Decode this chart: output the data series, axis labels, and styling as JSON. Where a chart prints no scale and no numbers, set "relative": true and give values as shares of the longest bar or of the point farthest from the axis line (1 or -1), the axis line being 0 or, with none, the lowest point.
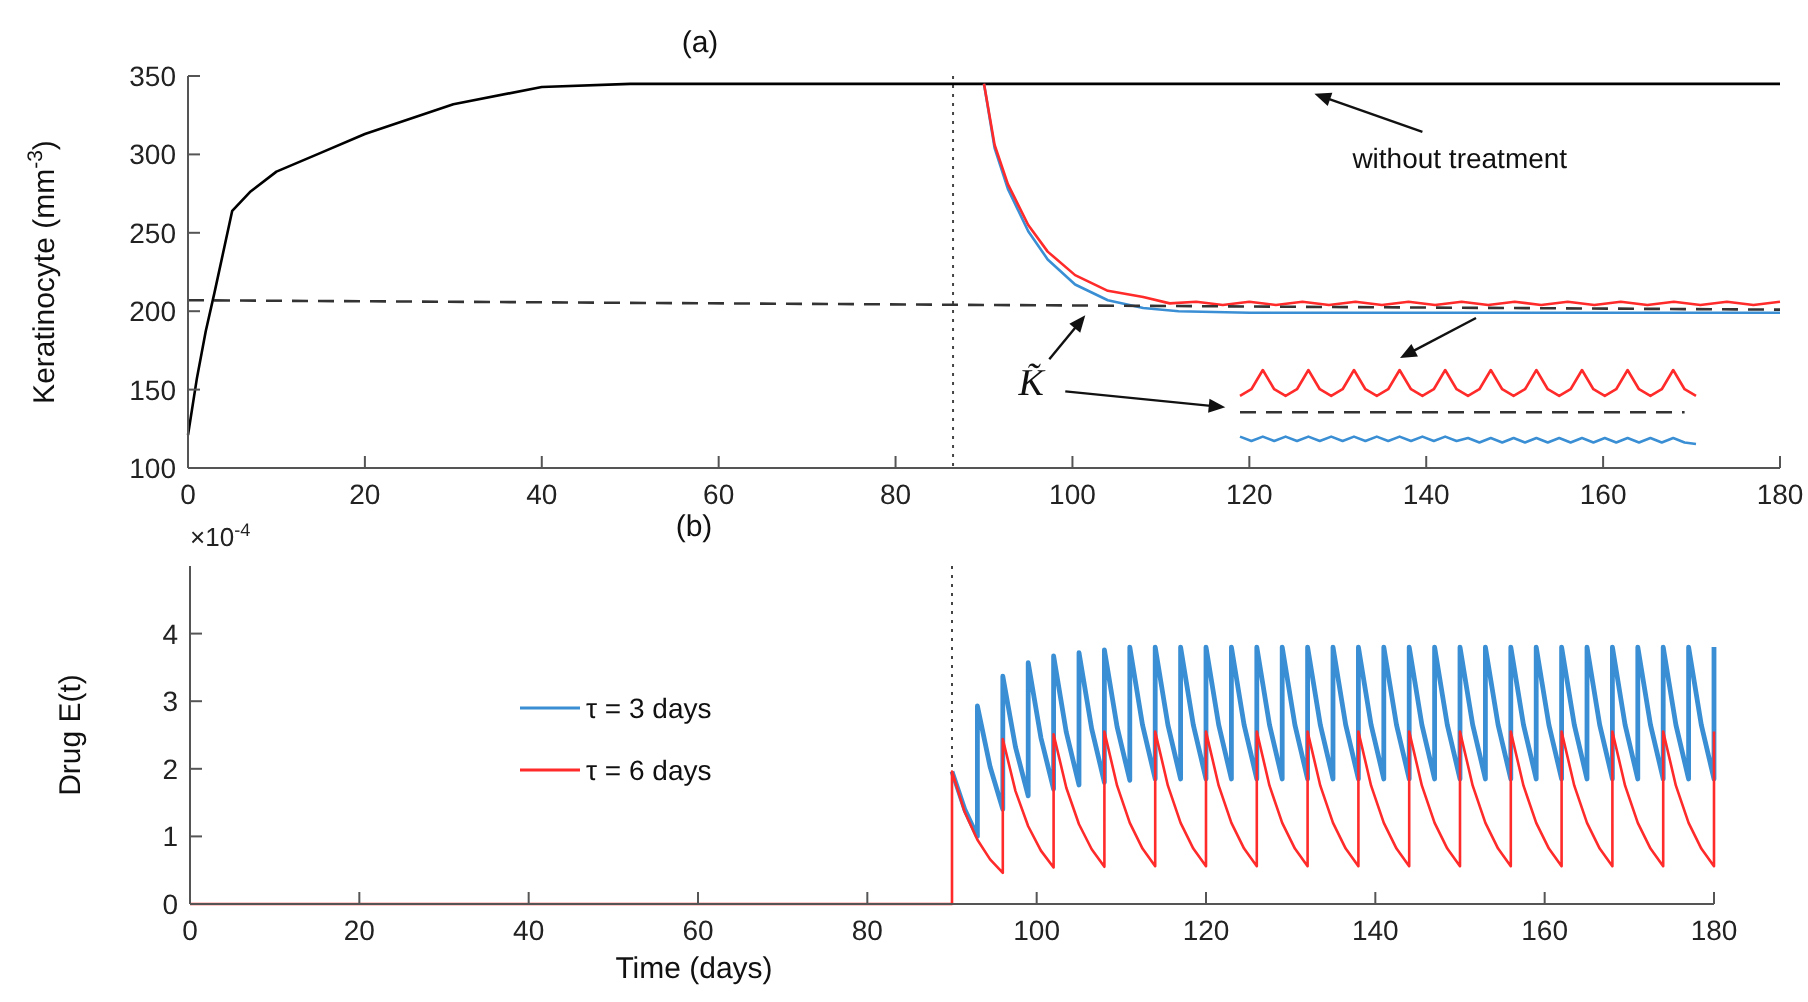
{
  "chart_data": [
    {
      "type": "line",
      "title": "(a)",
      "ylabel": "Keratinocyte (mm$^{-3}$)",
      "xlim": [
        0,
        180
      ],
      "xticks": [
        0,
        20,
        40,
        60,
        80,
        100,
        120,
        140,
        160,
        180
      ],
      "ylim": [
        100,
        350
      ],
      "yticks": [
        100,
        150,
        200,
        250,
        300,
        350
      ],
      "legend": false,
      "series": [
        {
          "color": "#000000",
          "x": [
            0,
            1,
            2,
            3,
            5,
            7,
            10,
            15,
            20,
            30,
            40,
            50,
            60,
            90,
            180
          ],
          "values": [
            121,
            157,
            187,
            212,
            264,
            276,
            289,
            301,
            313,
            332,
            343,
            345,
            345,
            345,
            345
          ]
        },
        {
          "color": "#3a8fd4",
          "x": [
            90,
            91.2,
            92.7,
            95,
            97.2,
            100.3,
            104,
            108,
            112,
            120,
            180
          ],
          "values": [
            345,
            304,
            278,
            251,
            233,
            217,
            207,
            202,
            200,
            199,
            199
          ]
        },
        {
          "color": "#ff2a2a",
          "x": [
            90,
            91.2,
            92.7,
            95,
            97.2,
            100.3,
            104,
            108,
            111,
            114,
            117,
            120,
            123,
            126,
            129,
            132,
            135,
            138,
            141,
            144,
            147,
            150,
            153,
            156,
            159,
            162,
            165,
            168,
            171,
            174,
            177,
            180
          ],
          "values": [
            345,
            306,
            281,
            255,
            238,
            223,
            213,
            209,
            205,
            206,
            204,
            206,
            204,
            206,
            204,
            206,
            204,
            206,
            204,
            206,
            204,
            206,
            204,
            206,
            204,
            206,
            204,
            206,
            204,
            206,
            204,
            206
          ]
        },
        {
          "color": "#333333",
          "line_style": "dashed",
          "x": [
            0,
            180
          ],
          "values": [
            207,
            201
          ]
        }
      ],
      "ref_lines": [
        {
          "axis": "x",
          "value": 86.5,
          "color": "#444444",
          "line_style": "dotted"
        }
      ],
      "annotations": [
        {
          "text": "without treatment",
          "x": 126,
          "y": 345
        },
        {
          "text": "K̃",
          "x": 101,
          "y": 205
        }
      ]
    },
    {
      "type": "line",
      "title": "(b)",
      "xlabel": "Time (days)",
      "ylabel": "Drug E(t)",
      "xlim": [
        0,
        180
      ],
      "xticks": [
        0,
        20,
        40,
        60,
        80,
        100,
        120,
        140,
        160,
        180
      ],
      "ylim": [
        0,
        5
      ],
      "yticks": [
        0,
        1,
        2,
        3,
        4
      ],
      "legend": "left",
      "series": [
        {
          "name": "τ = 3 days",
          "color": "#3a8fd4",
          "x": [
            90,
            91.5,
            93,
            93,
            94.5,
            96,
            96,
            97.5,
            99,
            99,
            100.5,
            102,
            102,
            103.5,
            105,
            105,
            106.5,
            108,
            108,
            109.5,
            111,
            111,
            112.5,
            114,
            114,
            115.5,
            117,
            117,
            118.5,
            120,
            120,
            121.5,
            123,
            123,
            124.5,
            126,
            126,
            127.5,
            129,
            129,
            130.5,
            132,
            132,
            133.5,
            135,
            135,
            136.5,
            138,
            138,
            139.5,
            141,
            141,
            142.5,
            144,
            144,
            145.5,
            147,
            147,
            148.5,
            150,
            150,
            151.5,
            153,
            153,
            154.5,
            156,
            156,
            157.5,
            159,
            159,
            160.5,
            162,
            162,
            163.5,
            165,
            165,
            166.5,
            168,
            168,
            169.5,
            171,
            171,
            172.5,
            174,
            174,
            175.5,
            177,
            177,
            178.5,
            180,
            180
          ],
          "values": [
            1.96,
            1.4,
            1.0,
            2.93,
            2.03,
            1.4,
            3.37,
            2.32,
            1.6,
            3.57,
            2.46,
            1.7,
            3.67,
            2.54,
            1.76,
            3.72,
            2.59,
            1.8,
            3.76,
            2.62,
            1.83,
            3.8,
            2.65,
            1.85,
            3.8,
            2.65,
            1.85,
            3.8,
            2.65,
            1.85,
            3.8,
            2.65,
            1.85,
            3.8,
            2.65,
            1.85,
            3.8,
            2.65,
            1.85,
            3.8,
            2.65,
            1.85,
            3.8,
            2.65,
            1.85,
            3.8,
            2.65,
            1.85,
            3.8,
            2.65,
            1.85,
            3.8,
            2.65,
            1.85,
            3.8,
            2.65,
            1.85,
            3.8,
            2.65,
            1.85,
            3.8,
            2.65,
            1.85,
            3.8,
            2.65,
            1.85,
            3.8,
            2.65,
            1.85,
            3.8,
            2.65,
            1.85,
            3.8,
            2.65,
            1.85,
            3.8,
            2.65,
            1.85,
            3.8,
            2.65,
            1.85,
            3.8,
            2.65,
            1.85,
            3.8,
            2.65,
            1.85,
            3.8,
            2.65,
            1.85,
            3.8
          ]
        },
        {
          "name": "τ = 6 days",
          "color": "#ff2a2a",
          "x": [
            0,
            90,
            90,
            91.5,
            93,
            94.5,
            96,
            96,
            97.5,
            99,
            100.5,
            102,
            102,
            103.5,
            105,
            106.5,
            108,
            108,
            109.5,
            111,
            112.5,
            114,
            114,
            115.5,
            117,
            118.5,
            120,
            120,
            121.5,
            123,
            124.5,
            126,
            126,
            127.5,
            129,
            130.5,
            132,
            132,
            133.5,
            135,
            136.5,
            138,
            138,
            139.5,
            141,
            142.5,
            144,
            144,
            145.5,
            147,
            148.5,
            150,
            150,
            151.5,
            153,
            154.5,
            156,
            156,
            157.5,
            159,
            160.5,
            162,
            162,
            163.5,
            165,
            166.5,
            168,
            168,
            169.5,
            171,
            172.5,
            174,
            174,
            175.5,
            177,
            178.5,
            180,
            180
          ],
          "values": [
            0,
            0,
            1.96,
            1.36,
            0.95,
            0.66,
            0.46,
            2.44,
            1.67,
            1.15,
            0.79,
            0.54,
            2.51,
            1.72,
            1.18,
            0.81,
            0.55,
            2.55,
            1.75,
            1.2,
            0.82,
            0.56,
            2.55,
            1.75,
            1.2,
            0.82,
            0.56,
            2.55,
            1.75,
            1.2,
            0.82,
            0.56,
            2.55,
            1.75,
            1.2,
            0.82,
            0.56,
            2.55,
            1.75,
            1.2,
            0.82,
            0.56,
            2.55,
            1.75,
            1.2,
            0.82,
            0.56,
            2.55,
            1.75,
            1.2,
            0.82,
            0.56,
            2.55,
            1.75,
            1.2,
            0.82,
            0.56,
            2.55,
            1.75,
            1.2,
            0.82,
            0.56,
            2.55,
            1.75,
            1.2,
            0.82,
            0.56,
            2.55,
            1.75,
            1.2,
            0.82,
            0.56,
            2.55,
            1.75,
            1.2,
            0.82,
            0.56,
            2.55
          ]
        }
      ],
      "ref_lines": [
        {
          "axis": "x",
          "value": 90,
          "color": "#444444",
          "line_style": "dotted"
        }
      ],
      "annotations": [
        "×10$^{-4}$"
      ]
    },
    {
      "type": "line",
      "relative": true,
      "categories": [
        null,
        null,
        null,
        null,
        null,
        null,
        null,
        null,
        null,
        null,
        null,
        null,
        null,
        null,
        null,
        null,
        null,
        null,
        null,
        null,
        null,
        null,
        null,
        null,
        null,
        null,
        null,
        null,
        null,
        null,
        null,
        null,
        null,
        null,
        null,
        null,
        null,
        null,
        null,
        null,
        null
      ],
      "series": [
        {
          "color": "#ff2a2a",
          "values": [
            0.65,
            0.74,
            1,
            0.74,
            0.65,
            0.74,
            1,
            0.74,
            0.65,
            0.74,
            1,
            0.74,
            0.65,
            0.74,
            1,
            0.74,
            0.65,
            0.74,
            1,
            0.74,
            0.65,
            0.74,
            1,
            0.74,
            0.65,
            0.74,
            1,
            0.74,
            0.65,
            0.74,
            1,
            0.74,
            0.65,
            0.74,
            1,
            0.74,
            0.65,
            0.74,
            1,
            0.74,
            0.65
          ]
        },
        {
          "color": "#333333",
          "line_style": "dashed",
          "values": [
            0.43,
            0.43,
            0.43,
            0.43,
            0.43,
            0.43,
            0.43,
            0.43,
            0.43,
            0.43,
            0.43,
            0.43,
            0.43,
            0.43,
            0.43,
            0.43,
            0.43,
            0.43,
            0.43,
            0.43,
            0.43,
            0.43,
            0.43,
            0.43,
            0.43,
            0.43,
            0.43,
            0.43,
            0.43,
            0.43,
            0.43,
            0.43,
            0.43,
            0.43,
            0.43,
            0.43,
            0.43,
            0.43,
            0.43,
            0.43,
            null
          ]
        },
        {
          "color": "#3a8fd4",
          "values": [
            0.1,
            0.04,
            0.1,
            0.04,
            0.1,
            0.04,
            0.1,
            0.04,
            0.1,
            0.04,
            0.1,
            0.04,
            0.1,
            0.04,
            0.1,
            0.04,
            0.1,
            0.04,
            0.1,
            0.04,
            0.08,
            0.02,
            0.08,
            0.02,
            0.08,
            0.02,
            0.08,
            0.02,
            0.08,
            0.02,
            0.08,
            0.02,
            0.08,
            0.02,
            0.08,
            0.02,
            0.08,
            0.02,
            0.08,
            0.02,
            0
          ]
        }
      ]
    }
  ]
}
